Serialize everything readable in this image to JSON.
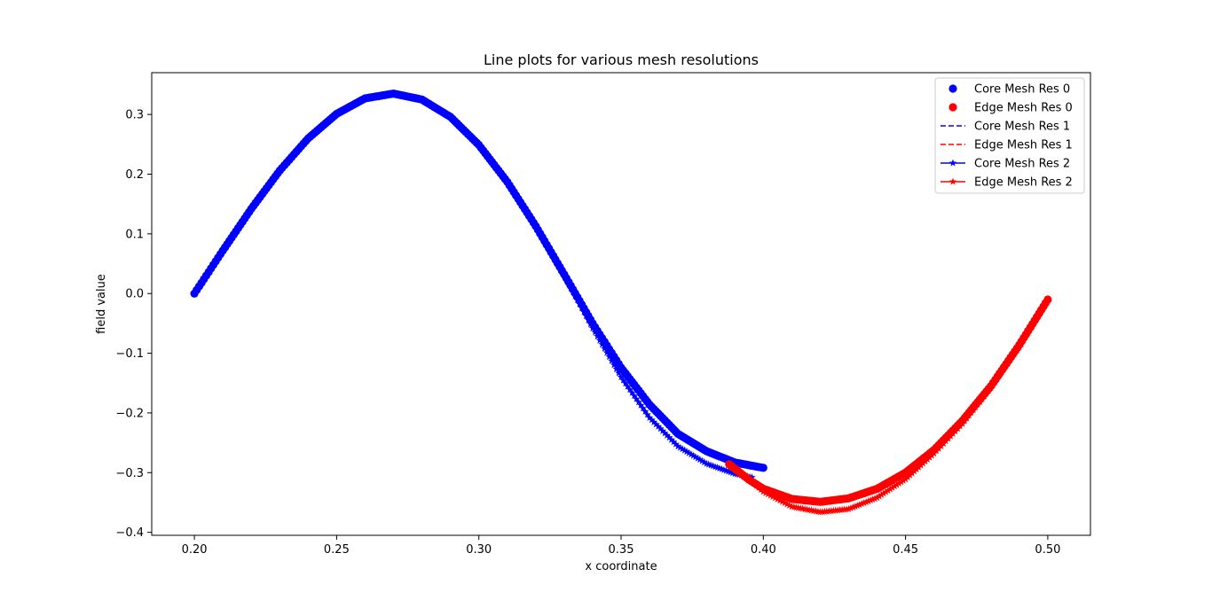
{
  "chart_data": {
    "type": "scatter",
    "title": "Line plots for various mesh resolutions",
    "xlabel": "x coordinate",
    "ylabel": "field value",
    "xlim": [
      0.185,
      0.515
    ],
    "ylim": [
      -0.405,
      0.37
    ],
    "x_ticks": [
      0.2,
      0.25,
      0.3,
      0.35,
      0.4,
      0.45,
      0.5
    ],
    "x_tick_labels": [
      "0.20",
      "0.25",
      "0.30",
      "0.35",
      "0.40",
      "0.45",
      "0.50"
    ],
    "y_ticks": [
      0.3,
      0.2,
      0.1,
      0.0,
      -0.1,
      -0.2,
      -0.3,
      -0.4
    ],
    "y_tick_labels": [
      "0.3",
      "0.2",
      "0.1",
      "0.0",
      "−0.1",
      "−0.2",
      "−0.3",
      "−0.4"
    ],
    "grid": false,
    "legend_position": "top-right",
    "colors": {
      "core": "#0000ff",
      "edge": "#ff0000"
    },
    "series": [
      {
        "name": "Core Mesh Res 0",
        "style": "marker-circle",
        "color": "#0000ff",
        "x": [
          0.2,
          0.21,
          0.22,
          0.23,
          0.24,
          0.25,
          0.26,
          0.27,
          0.28,
          0.29,
          0.3,
          0.31,
          0.32,
          0.33,
          0.34,
          0.35,
          0.36,
          0.37,
          0.38,
          0.39,
          0.4
        ],
        "y": [
          0.0,
          0.072,
          0.142,
          0.206,
          0.26,
          0.301,
          0.327,
          0.335,
          0.325,
          0.296,
          0.249,
          0.187,
          0.113,
          0.032,
          -0.05,
          -0.124,
          -0.186,
          -0.235,
          -0.264,
          -0.283,
          -0.292
        ]
      },
      {
        "name": "Edge Mesh Res 0",
        "style": "marker-circle",
        "color": "#ff0000",
        "x": [
          0.388,
          0.395,
          0.4,
          0.41,
          0.42,
          0.43,
          0.44,
          0.45,
          0.46,
          0.47,
          0.48,
          0.49,
          0.5
        ],
        "y": [
          -0.286,
          -0.312,
          -0.327,
          -0.344,
          -0.349,
          -0.343,
          -0.327,
          -0.3,
          -0.262,
          -0.213,
          -0.155,
          -0.086,
          -0.01
        ]
      },
      {
        "name": "Core Mesh Res 1",
        "style": "dashed",
        "color": "#0000ff",
        "x": [
          0.2,
          0.21,
          0.22,
          0.23,
          0.24,
          0.25,
          0.26,
          0.27,
          0.28,
          0.29,
          0.3,
          0.31,
          0.32,
          0.33,
          0.34,
          0.35,
          0.36,
          0.37,
          0.38,
          0.39,
          0.396
        ],
        "y": [
          0.0,
          0.072,
          0.142,
          0.206,
          0.26,
          0.301,
          0.327,
          0.335,
          0.325,
          0.296,
          0.249,
          0.187,
          0.113,
          0.03,
          -0.058,
          -0.14,
          -0.208,
          -0.256,
          -0.285,
          -0.302,
          -0.308
        ]
      },
      {
        "name": "Edge Mesh Res 1",
        "style": "dashed",
        "color": "#ff0000",
        "x": [
          0.396,
          0.4,
          0.41,
          0.42,
          0.43,
          0.44,
          0.45,
          0.46,
          0.47,
          0.48,
          0.49,
          0.5
        ],
        "y": [
          -0.315,
          -0.332,
          -0.357,
          -0.366,
          -0.361,
          -0.342,
          -0.311,
          -0.268,
          -0.218,
          -0.158,
          -0.089,
          -0.012
        ]
      },
      {
        "name": "Core Mesh Res 2",
        "style": "line-star",
        "color": "#0000ff",
        "x": [
          0.2,
          0.21,
          0.22,
          0.23,
          0.24,
          0.25,
          0.26,
          0.27,
          0.28,
          0.29,
          0.3,
          0.31,
          0.32,
          0.33,
          0.34,
          0.35,
          0.36,
          0.37,
          0.38,
          0.39,
          0.396
        ],
        "y": [
          0.0,
          0.072,
          0.142,
          0.206,
          0.26,
          0.301,
          0.327,
          0.335,
          0.325,
          0.296,
          0.249,
          0.187,
          0.113,
          0.03,
          -0.058,
          -0.14,
          -0.208,
          -0.256,
          -0.285,
          -0.302,
          -0.308
        ]
      },
      {
        "name": "Edge Mesh Res 2",
        "style": "line-star",
        "color": "#ff0000",
        "x": [
          0.396,
          0.4,
          0.41,
          0.42,
          0.43,
          0.44,
          0.45,
          0.46,
          0.47,
          0.48,
          0.49,
          0.5
        ],
        "y": [
          -0.315,
          -0.332,
          -0.357,
          -0.366,
          -0.361,
          -0.342,
          -0.311,
          -0.268,
          -0.218,
          -0.158,
          -0.089,
          -0.012
        ]
      }
    ]
  }
}
